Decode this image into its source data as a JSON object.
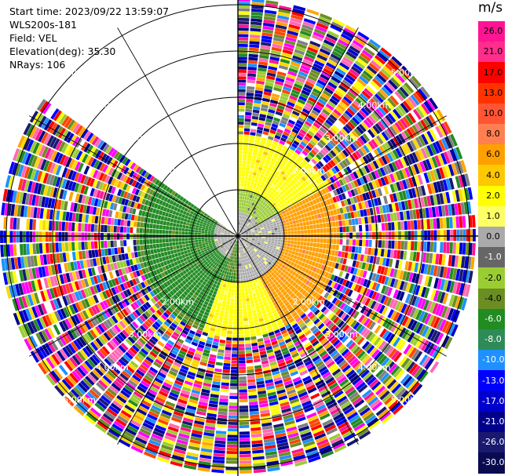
{
  "header": {
    "start_time": "Start time: 2023/09/22 13:59:07",
    "instrument": "WLS200s-181",
    "field": "Field: VEL",
    "elevation": "Elevation(deg): 35.30",
    "nrays": "NRays: 106"
  },
  "colorbar": {
    "unit": "m/s",
    "labels": [
      "26.0",
      "21.0",
      "17.0",
      "13.0",
      "10.0",
      "8.0",
      "6.0",
      "4.0",
      "2.0",
      "1.0",
      "0.0",
      "-1.0",
      "-2.0",
      "-4.0",
      "-6.0",
      "-8.0",
      "-10.0",
      "-13.0",
      "-17.0",
      "-21.0",
      "-26.0",
      "-30.0"
    ],
    "colors": [
      "#ff1493",
      "#ff2d8c",
      "#ff0000",
      "#ff3300",
      "#ff5533",
      "#ff7f50",
      "#ffa000",
      "#ffc800",
      "#ffff00",
      "#ffff66",
      "#aaaaaa",
      "#666666",
      "#9acd32",
      "#6b8e23",
      "#228b22",
      "#2e8b57",
      "#1e90ff",
      "#0000ff",
      "#0000cd",
      "#00008b",
      "#191970",
      "#0a0a50"
    ],
    "label_colors": [
      "#000000",
      "#000000",
      "#000000",
      "#000000",
      "#000000",
      "#000000",
      "#000000",
      "#000000",
      "#000000",
      "#000000",
      "#000000",
      "#ffffff",
      "#000000",
      "#000000",
      "#ffffff",
      "#ffffff",
      "#ffffff",
      "#ffffff",
      "#ffffff",
      "#ffffff",
      "#ffffff",
      "#ffffff"
    ]
  },
  "chart_data": {
    "type": "heatmap",
    "projection": "polar-ppi",
    "field": "VEL",
    "unit": "m/s",
    "nrays": 106,
    "range_rings_km": [
      1.0,
      2.0,
      3.0,
      4.0,
      5.0
    ],
    "range_ring_labels": [
      "1.00km",
      "2.00km",
      "3.00km",
      "4.00km",
      "5.00km"
    ],
    "max_range_km": 5.1,
    "missing_sector_deg": [
      305,
      360
    ],
    "value_regions": [
      {
        "az_range": [
          0,
          180
        ],
        "r_range_km": [
          0.0,
          1.0
        ],
        "value": 0.0
      },
      {
        "az_range": [
          0,
          60
        ],
        "r_range_km": [
          0.5,
          1.0
        ],
        "value": -2.0
      },
      {
        "az_range": [
          0,
          180
        ],
        "r_range_km": [
          1.0,
          2.2
        ],
        "value": 2.0
      },
      {
        "az_range": [
          60,
          150
        ],
        "r_range_km": [
          1.0,
          2.2
        ],
        "value": 6.0
      },
      {
        "az_range": [
          150,
          200
        ],
        "r_range_km": [
          1.0,
          2.2
        ],
        "value": 2.0
      },
      {
        "az_range": [
          200,
          305
        ],
        "r_range_km": [
          0.5,
          2.0
        ],
        "value": -6.0
      },
      {
        "az_range": [
          200,
          305
        ],
        "r_range_km": [
          0.0,
          0.5
        ],
        "value": 0.0
      }
    ],
    "noise_beyond_km": 2.2,
    "grid": true
  }
}
